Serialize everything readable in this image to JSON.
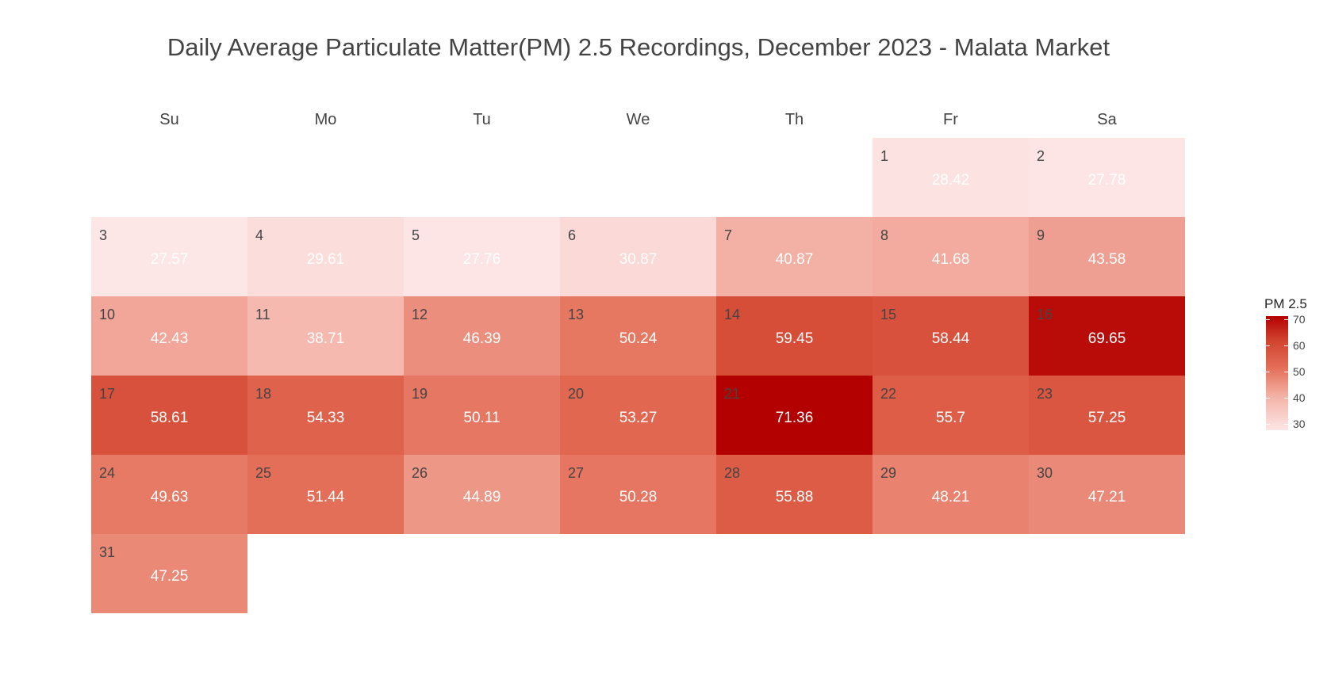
{
  "chart_data": {
    "type": "heatmap",
    "title": "Daily Average Particulate Matter(PM) 2.5 Recordings, December 2023 - Malata Market",
    "weekdays": [
      "Su",
      "Mo",
      "Tu",
      "We",
      "Th",
      "Fr",
      "Sa"
    ],
    "first_weekday_index": 5,
    "days": [
      1,
      2,
      3,
      4,
      5,
      6,
      7,
      8,
      9,
      10,
      11,
      12,
      13,
      14,
      15,
      16,
      17,
      18,
      19,
      20,
      21,
      22,
      23,
      24,
      25,
      26,
      27,
      28,
      29,
      30,
      31
    ],
    "values": [
      "28.42",
      "27.78",
      "27.57",
      "29.61",
      "27.76",
      "30.87",
      "40.87",
      "41.68",
      "43.58",
      "42.43",
      "38.71",
      "46.39",
      "50.24",
      "59.45",
      "58.44",
      "69.65",
      "58.61",
      "54.33",
      "50.11",
      "53.27",
      "71.36",
      "55.7",
      "57.25",
      "49.63",
      "51.44",
      "44.89",
      "50.28",
      "55.88",
      "48.21",
      "47.21",
      "47.25"
    ],
    "legend": {
      "title": "PM 2.5",
      "ticks": [
        "30",
        "40",
        "50",
        "60",
        "70"
      ],
      "range": [
        27.57,
        71.36
      ],
      "color_low": "#fde6e6",
      "color_high": "#b30000"
    }
  }
}
